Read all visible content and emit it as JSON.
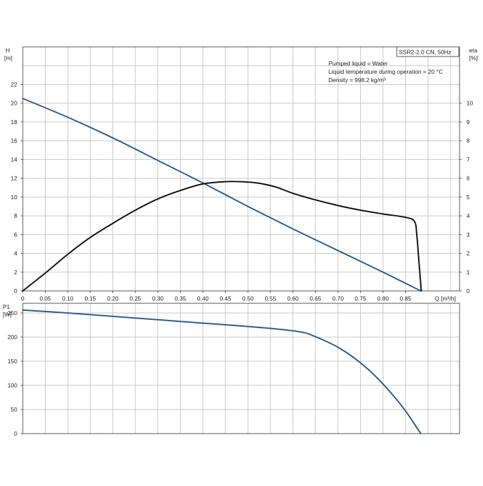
{
  "chart_data": [
    {
      "type": "line",
      "model_label": "SSR2-2.0 CN, 50Hz",
      "annotations": [
        "Pumped liquid = Water",
        "Liquid temperature during operation = 20 °C",
        "Density = 998.2 kg/m³"
      ],
      "xlabel": "Q [m³/h]",
      "y_left_label": [
        "H",
        "[m]"
      ],
      "y_right_label": [
        "eta",
        "[%]"
      ],
      "xlim": [
        0,
        0.97
      ],
      "ylim": [
        0,
        26
      ],
      "y2lim": [
        0,
        13
      ],
      "x_ticks": [
        "0",
        "0.05",
        "0.10",
        "0.15",
        "0.20",
        "0.25",
        "0.30",
        "0.35",
        "0.40",
        "0.45",
        "0.50",
        "0.55",
        "0.60",
        "0.65",
        "0.70",
        "0.75",
        "0.80",
        "0.85"
      ],
      "y_ticks": [
        "0",
        "2",
        "4",
        "6",
        "8",
        "10",
        "12",
        "14",
        "16",
        "18",
        "20",
        "22"
      ],
      "y2_ticks": [
        "0",
        "1",
        "2",
        "3",
        "4",
        "5",
        "6",
        "7",
        "8",
        "9",
        "10"
      ],
      "grid": true,
      "series": [
        {
          "axis": "left",
          "color": "#2a5d8f",
          "x": [
            0,
            0.1,
            0.2,
            0.3,
            0.4,
            0.5,
            0.6,
            0.7,
            0.8,
            0.884
          ],
          "values": [
            20.5,
            18.5,
            16.3,
            13.9,
            11.5,
            9.0,
            6.6,
            4.3,
            2.0,
            0
          ]
        },
        {
          "axis": "right",
          "color": "#111111",
          "x": [
            0,
            0.05,
            0.1,
            0.15,
            0.2,
            0.25,
            0.3,
            0.35,
            0.4,
            0.45,
            0.48,
            0.52,
            0.56,
            0.6,
            0.65,
            0.7,
            0.75,
            0.8,
            0.85,
            0.87,
            0.875,
            0.88,
            0.885
          ],
          "values": [
            0,
            0.95,
            1.95,
            2.85,
            3.6,
            4.3,
            4.9,
            5.35,
            5.7,
            5.82,
            5.82,
            5.75,
            5.55,
            5.2,
            4.85,
            4.55,
            4.3,
            4.1,
            3.92,
            3.7,
            3.0,
            1.5,
            0
          ]
        }
      ]
    },
    {
      "type": "line",
      "y_left_label": [
        "P1",
        "[W]"
      ],
      "xlim": [
        0,
        0.97
      ],
      "ylim": [
        0,
        270
      ],
      "y_ticks": [
        "0",
        "50",
        "100",
        "150",
        "200",
        "250"
      ],
      "grid": true,
      "series": [
        {
          "axis": "left",
          "color": "#2a5d8f",
          "x": [
            0,
            0.1,
            0.2,
            0.3,
            0.4,
            0.5,
            0.55,
            0.6,
            0.63,
            0.66,
            0.7,
            0.74,
            0.78,
            0.82,
            0.85,
            0.884
          ],
          "values": [
            256,
            250,
            243,
            236,
            229,
            222,
            218,
            213,
            208,
            197,
            179,
            154,
            122,
            82,
            47,
            0
          ]
        }
      ]
    }
  ]
}
